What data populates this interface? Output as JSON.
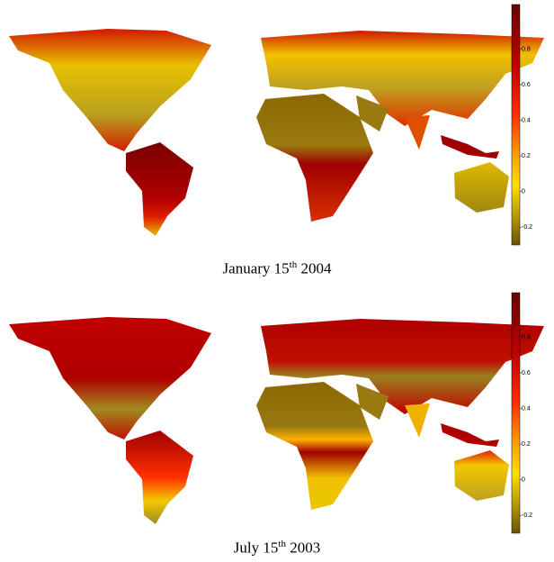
{
  "panels": [
    {
      "caption": {
        "prefix": "January 15",
        "sup": "th",
        "suffix": " 2004"
      },
      "colorbar": {
        "range": [
          -0.3,
          1.05
        ],
        "ticks": [
          0.8,
          0.6,
          0.4,
          0.2,
          0,
          -0.2
        ]
      }
    },
    {
      "caption": {
        "prefix": "July 15",
        "sup": "th",
        "suffix": " 2003"
      },
      "colorbar": {
        "range": [
          -0.3,
          1.05
        ],
        "ticks": [
          0.8,
          0.6,
          0.4,
          0.2,
          0,
          -0.2
        ]
      }
    }
  ]
}
